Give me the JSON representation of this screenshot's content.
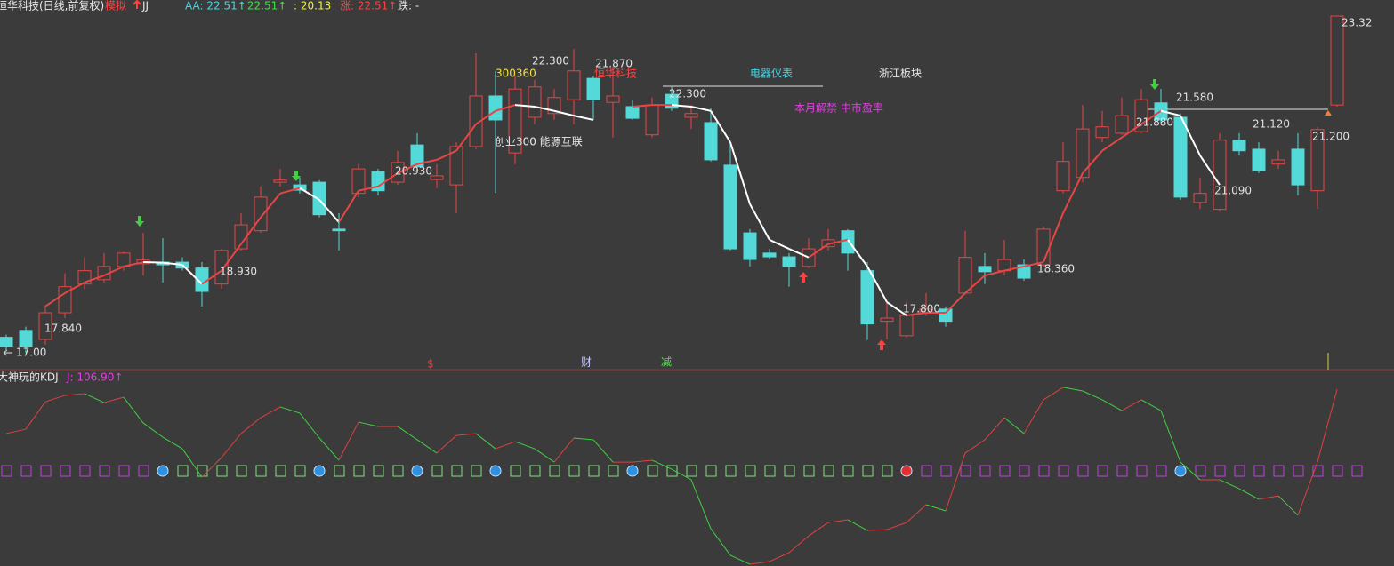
{
  "chart_data": [
    {
      "type": "candlestick",
      "title": "恒华科技(日线,前复权)",
      "title_color": "#e8e8e8",
      "legend": [
        {
          "text": "模拟",
          "color": "#ff4040"
        },
        {
          "text": "JJ",
          "color": "#e8e8e8"
        },
        {
          "text": "AA: 22.51↑",
          "color": "#40d8e8"
        },
        {
          "text": ": 22.51↑",
          "color": "#40e040"
        },
        {
          "text": ": 20.13",
          "color": "#f0f040"
        },
        {
          "text": "涨: 22.51↑",
          "color": "#ff4040"
        },
        {
          "text": "跌: -",
          "color": "#e8e8e8"
        }
      ],
      "up_color": "#e84545",
      "down_color": "#54d9d9",
      "ylim": [
        16.7,
        23.62
      ],
      "open": [
        17.29,
        17.42,
        17.25,
        17.75,
        18.29,
        18.37,
        18.62,
        18.67,
        18.7,
        18.7,
        18.59,
        18.29,
        18.95,
        19.29,
        20.2,
        20.15,
        20.2,
        19.32,
        19.99,
        20.4,
        20.2,
        20.9,
        20.25,
        20.15,
        20.87,
        21.82,
        20.75,
        21.42,
        21.49,
        21.75,
        22.15,
        21.7,
        21.62,
        21.09,
        21.85,
        21.42,
        21.32,
        20.52,
        19.25,
        18.87,
        18.8,
        18.62,
        18.99,
        19.29,
        18.54,
        17.59,
        17.32,
        17.75,
        17.82,
        18.12,
        18.62,
        18.54,
        18.65,
        18.65,
        20.04,
        20.29,
        21.04,
        21.12,
        21.15,
        21.69,
        21.42,
        19.82,
        19.69,
        20.99,
        20.82,
        20.54,
        20.82,
        20.04,
        21.65
      ],
      "high": [
        17.34,
        17.49,
        17.87,
        18.49,
        18.79,
        18.87,
        18.9,
        19.25,
        19.15,
        18.79,
        18.7,
        18.95,
        19.62,
        20.12,
        20.45,
        20.29,
        20.24,
        19.62,
        20.54,
        20.45,
        20.79,
        21.12,
        20.54,
        20.95,
        22.62,
        22.29,
        22.2,
        22.12,
        21.95,
        22.7,
        22.2,
        22.37,
        21.75,
        21.79,
        21.99,
        21.65,
        21.59,
        20.95,
        19.32,
        18.95,
        18.87,
        19.15,
        19.32,
        19.32,
        18.7,
        17.95,
        17.95,
        18.12,
        17.87,
        19.29,
        18.87,
        19.12,
        18.75,
        19.37,
        20.95,
        21.65,
        21.54,
        21.79,
        21.95,
        21.95,
        21.49,
        20.29,
        21.12,
        21.12,
        20.95,
        20.79,
        21.12,
        21.24,
        23.32
      ],
      "low": [
        17.04,
        17.0,
        17.15,
        17.65,
        18.2,
        18.32,
        18.54,
        18.45,
        18.32,
        18.54,
        17.87,
        18.2,
        18.92,
        19.25,
        20.12,
        19.99,
        19.54,
        18.92,
        19.92,
        19.95,
        20.15,
        20.45,
        20.09,
        19.62,
        20.82,
        20.0,
        20.54,
        21.29,
        21.37,
        21.29,
        21.37,
        21.04,
        21.37,
        21.04,
        21.54,
        21.2,
        20.59,
        18.92,
        18.62,
        18.75,
        18.24,
        18.59,
        18.92,
        18.54,
        17.24,
        17.25,
        17.29,
        17.69,
        17.49,
        18.09,
        18.29,
        18.45,
        18.35,
        18.62,
        19.99,
        20.2,
        20.95,
        21.09,
        21.12,
        21.32,
        19.87,
        19.7,
        19.65,
        20.7,
        20.37,
        20.45,
        19.95,
        19.7,
        21.62
      ],
      "close": [
        17.12,
        17.12,
        17.75,
        18.24,
        18.54,
        18.62,
        18.87,
        18.74,
        18.65,
        18.59,
        18.15,
        18.92,
        19.4,
        19.92,
        20.24,
        20.05,
        19.59,
        19.29,
        20.45,
        20.04,
        20.57,
        20.49,
        20.32,
        20.87,
        21.82,
        21.37,
        21.95,
        21.99,
        21.79,
        22.29,
        21.75,
        21.82,
        21.4,
        21.65,
        21.59,
        21.49,
        20.62,
        18.95,
        18.75,
        18.8,
        18.62,
        18.95,
        19.12,
        18.87,
        17.54,
        17.65,
        17.7,
        17.82,
        17.59,
        18.79,
        18.52,
        18.75,
        18.4,
        19.32,
        20.59,
        21.2,
        21.24,
        21.45,
        21.75,
        21.37,
        19.92,
        19.99,
        20.99,
        20.79,
        20.42,
        20.62,
        20.15,
        21.19,
        23.32
      ],
      "line": {
        "color": "#e84545",
        "fall_color": "#ffffff",
        "values": [
          null,
          null,
          17.87,
          18.12,
          18.32,
          18.45,
          18.62,
          18.7,
          18.69,
          18.65,
          18.29,
          18.54,
          19.04,
          19.54,
          19.99,
          20.09,
          19.87,
          19.45,
          20.04,
          20.12,
          20.37,
          20.54,
          20.62,
          20.79,
          21.29,
          21.54,
          21.65,
          21.62,
          21.54,
          21.45,
          21.37,
          null,
          21.62,
          21.65,
          21.65,
          21.62,
          21.54,
          20.95,
          19.79,
          19.12,
          18.95,
          18.79,
          19.04,
          19.12,
          18.62,
          17.95,
          17.7,
          17.75,
          17.75,
          18.12,
          18.45,
          18.54,
          18.62,
          18.7,
          19.62,
          20.37,
          20.79,
          21.04,
          21.29,
          21.54,
          21.45,
          20.7,
          20.15,
          null,
          null,
          null,
          null,
          null,
          22.54
        ]
      },
      "annotations": [
        {
          "text": "17.00",
          "color": "#e0e0e0"
        },
        {
          "text": "17.840",
          "color": "#e0e0e0"
        },
        {
          "text": "18.930",
          "color": "#e0e0e0"
        },
        {
          "text": "20.930",
          "color": "#e0e0e0"
        },
        {
          "text": "22.300",
          "color": "#e0e0e0"
        },
        {
          "text": "21.870",
          "color": "#e0e0e0"
        },
        {
          "text": "22.300",
          "color": "#e0e0e0"
        },
        {
          "text": "17.800",
          "color": "#e0e0e0"
        },
        {
          "text": "18.360",
          "color": "#e0e0e0"
        },
        {
          "text": "21.880",
          "color": "#e0e0e0"
        },
        {
          "text": "21.580",
          "color": "#e0e0e0"
        },
        {
          "text": "21.120",
          "color": "#e0e0e0"
        },
        {
          "text": "21.090",
          "color": "#e0e0e0"
        },
        {
          "text": "21.200",
          "color": "#e0e0e0"
        },
        {
          "text": "23.32",
          "color": "#e0e0e0"
        },
        {
          "text": "300360",
          "color": "#f0e040"
        },
        {
          "text": "恒华科技",
          "color": "#ff4040"
        },
        {
          "text": "电器仪表",
          "color": "#40d8e8"
        },
        {
          "text": "浙江板块",
          "color": "#e8e8e8"
        },
        {
          "text": "本月解禁 中市盈率",
          "color": "#e040e0"
        },
        {
          "text": "创业300 能源互联",
          "color": "#e8e8e8"
        },
        {
          "text": "$",
          "color": "#ff3030"
        },
        {
          "text": "财",
          "color": "#c8c8ff"
        },
        {
          "text": "减",
          "color": "#50e050"
        }
      ]
    },
    {
      "type": "line",
      "title": "大神玩的KDJ",
      "title_color": "#e8e8e8",
      "legend": [
        {
          "text": "J: 106.90↑",
          "color": "#e040e0"
        }
      ],
      "up_color": "#e04040",
      "down_color": "#40d040",
      "ylim": [
        -15,
        115
      ],
      "values": [
        76.4,
        79.4,
        98.4,
        102.7,
        104.0,
        97.8,
        101.5,
        83.7,
        73.9,
        65.9,
        46.3,
        59.8,
        76.4,
        87.4,
        94.8,
        90.5,
        73.3,
        58.0,
        84.3,
        81.3,
        81.3,
        72.1,
        62.9,
        75.1,
        76.4,
        65.9,
        70.8,
        65.9,
        56.7,
        73.3,
        72.1,
        56.7,
        56.7,
        58.0,
        51.8,
        44.5,
        10.8,
        -7.6,
        -13.8,
        -11.9,
        -5.8,
        5.8,
        15.0,
        16.9,
        9.5,
        10.1,
        15.0,
        27.3,
        23.0,
        62.9,
        72.1,
        87.4,
        76.4,
        99.7,
        108.3,
        105.8,
        99.7,
        92.3,
        99.7,
        92.3,
        56.7,
        44.5,
        44.5,
        38.3,
        31.0,
        33.4,
        20.0,
        56.7,
        106.9
      ]
    }
  ]
}
